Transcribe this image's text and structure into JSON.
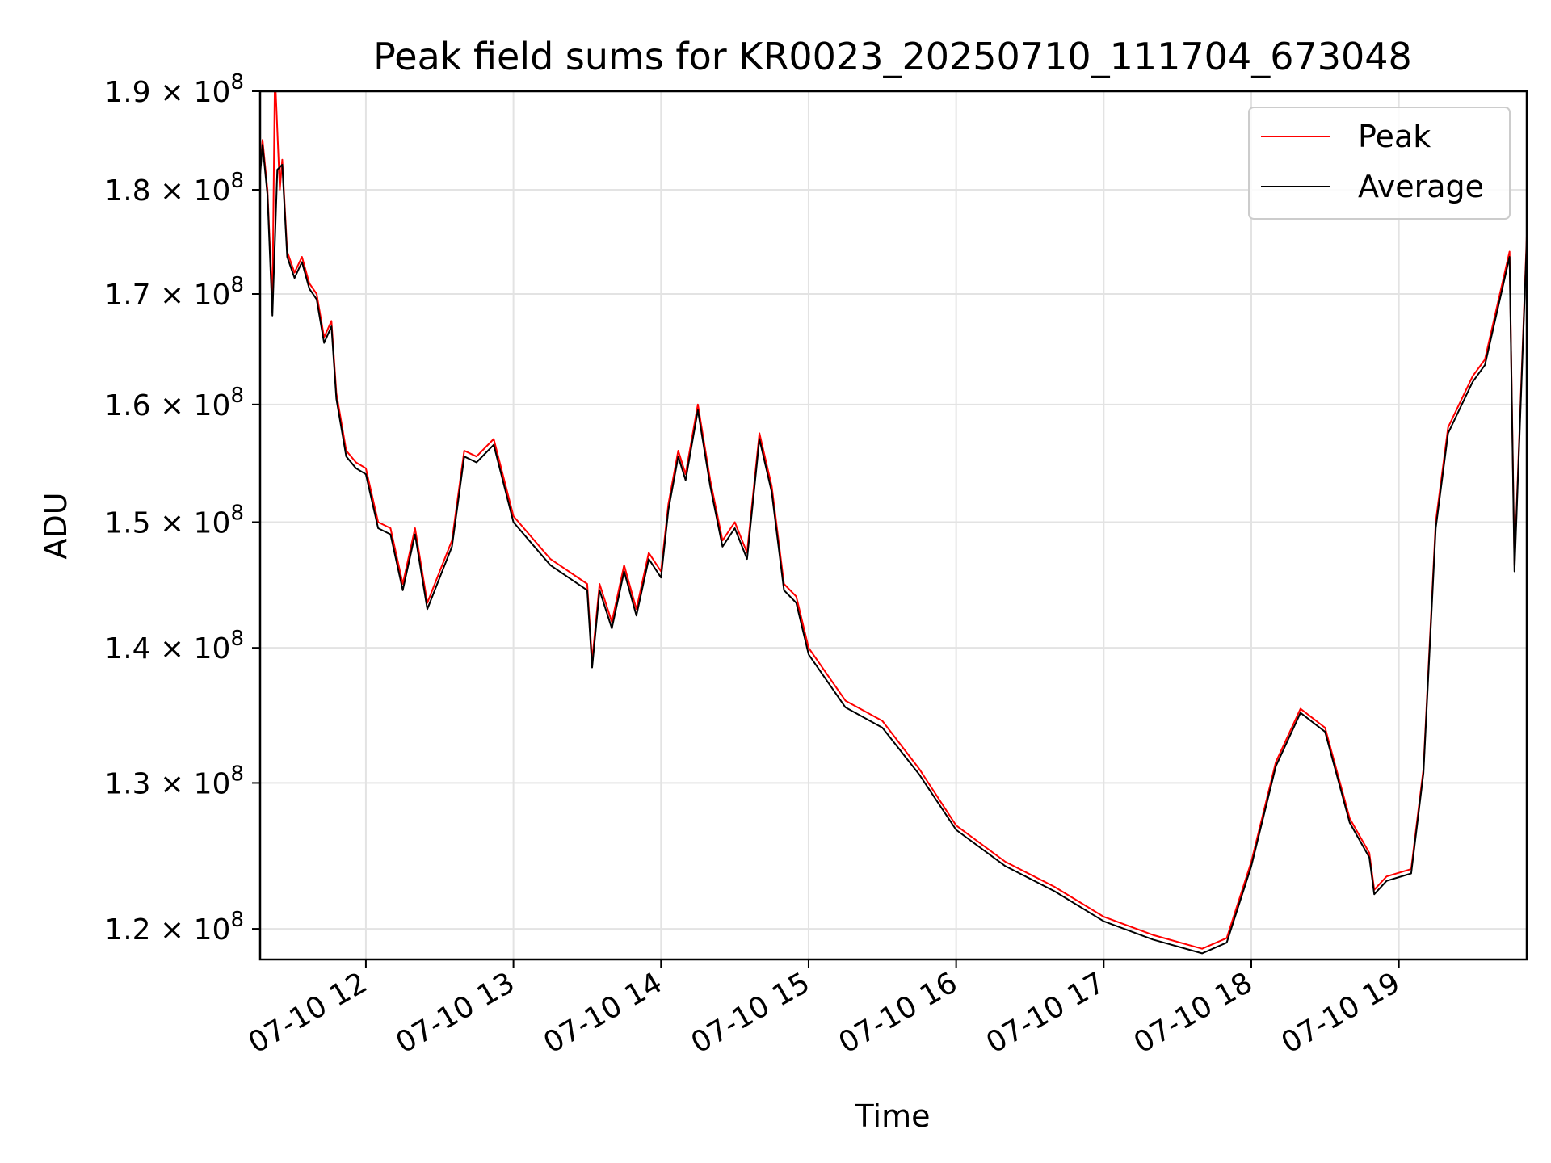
{
  "chart_data": {
    "type": "line",
    "title": "Peak field sums for KR0023_20250710_111704_673048",
    "xlabel": "Time",
    "ylabel": "ADU",
    "yscale": "log",
    "grid": true,
    "legend_position": "top-right",
    "xlim": [
      "2025-07-10 11:17",
      "2025-07-10 19:52"
    ],
    "ylim": [
      118000000,
      190000000
    ],
    "x_ticks": [
      {
        "value": "2025-07-10 12:00",
        "label": "07-10 12"
      },
      {
        "value": "2025-07-10 13:00",
        "label": "07-10 13"
      },
      {
        "value": "2025-07-10 14:00",
        "label": "07-10 14"
      },
      {
        "value": "2025-07-10 15:00",
        "label": "07-10 15"
      },
      {
        "value": "2025-07-10 16:00",
        "label": "07-10 16"
      },
      {
        "value": "2025-07-10 17:00",
        "label": "07-10 17"
      },
      {
        "value": "2025-07-10 18:00",
        "label": "07-10 18"
      },
      {
        "value": "2025-07-10 19:00",
        "label": "07-10 19"
      }
    ],
    "y_ticks": [
      {
        "value": 120000000,
        "mant": "1.2 × 10",
        "exp": "8"
      },
      {
        "value": 130000000,
        "mant": "1.3 × 10",
        "exp": "8"
      },
      {
        "value": 140000000,
        "mant": "1.4 × 10",
        "exp": "8"
      },
      {
        "value": 150000000,
        "mant": "1.5 × 10",
        "exp": "8"
      },
      {
        "value": 160000000,
        "mant": "1.6 × 10",
        "exp": "8"
      },
      {
        "value": 170000000,
        "mant": "1.7 × 10",
        "exp": "8"
      },
      {
        "value": 180000000,
        "mant": "1.8 × 10",
        "exp": "8"
      },
      {
        "value": 190000000,
        "mant": "1.9 × 10",
        "exp": "8"
      }
    ],
    "series": [
      {
        "name": "Peak",
        "color": "#ff0000",
        "points": [
          [
            "2025-07-10 11:17",
            182000000
          ],
          [
            "2025-07-10 11:18",
            185000000
          ],
          [
            "2025-07-10 11:20",
            180000000
          ],
          [
            "2025-07-10 11:22",
            169000000
          ],
          [
            "2025-07-10 11:23",
            192000000
          ],
          [
            "2025-07-10 11:25",
            180000000
          ],
          [
            "2025-07-10 11:26",
            183000000
          ],
          [
            "2025-07-10 11:28",
            174000000
          ],
          [
            "2025-07-10 11:31",
            172000000
          ],
          [
            "2025-07-10 11:34",
            173500000
          ],
          [
            "2025-07-10 11:37",
            171000000
          ],
          [
            "2025-07-10 11:40",
            170000000
          ],
          [
            "2025-07-10 11:43",
            166000000
          ],
          [
            "2025-07-10 11:46",
            167500000
          ],
          [
            "2025-07-10 11:48",
            161000000
          ],
          [
            "2025-07-10 11:52",
            156000000
          ],
          [
            "2025-07-10 11:56",
            155000000
          ],
          [
            "2025-07-10 12:00",
            154500000
          ],
          [
            "2025-07-10 12:05",
            150000000
          ],
          [
            "2025-07-10 12:10",
            149500000
          ],
          [
            "2025-07-10 12:15",
            145000000
          ],
          [
            "2025-07-10 12:20",
            149500000
          ],
          [
            "2025-07-10 12:25",
            143500000
          ],
          [
            "2025-07-10 12:30",
            146000000
          ],
          [
            "2025-07-10 12:35",
            148500000
          ],
          [
            "2025-07-10 12:40",
            156000000
          ],
          [
            "2025-07-10 12:45",
            155500000
          ],
          [
            "2025-07-10 12:52",
            157000000
          ],
          [
            "2025-07-10 13:00",
            150500000
          ],
          [
            "2025-07-10 13:15",
            147000000
          ],
          [
            "2025-07-10 13:30",
            145000000
          ],
          [
            "2025-07-10 13:32",
            139000000
          ],
          [
            "2025-07-10 13:35",
            145000000
          ],
          [
            "2025-07-10 13:40",
            142000000
          ],
          [
            "2025-07-10 13:45",
            146500000
          ],
          [
            "2025-07-10 13:50",
            143000000
          ],
          [
            "2025-07-10 13:55",
            147500000
          ],
          [
            "2025-07-10 14:00",
            146000000
          ],
          [
            "2025-07-10 14:03",
            151500000
          ],
          [
            "2025-07-10 14:07",
            156000000
          ],
          [
            "2025-07-10 14:10",
            154000000
          ],
          [
            "2025-07-10 14:15",
            160000000
          ],
          [
            "2025-07-10 14:20",
            153500000
          ],
          [
            "2025-07-10 14:25",
            148500000
          ],
          [
            "2025-07-10 14:30",
            150000000
          ],
          [
            "2025-07-10 14:35",
            147500000
          ],
          [
            "2025-07-10 14:40",
            157500000
          ],
          [
            "2025-07-10 14:45",
            153000000
          ],
          [
            "2025-07-10 14:50",
            145000000
          ],
          [
            "2025-07-10 14:55",
            144000000
          ],
          [
            "2025-07-10 15:00",
            140000000
          ],
          [
            "2025-07-10 15:15",
            136000000
          ],
          [
            "2025-07-10 15:30",
            134500000
          ],
          [
            "2025-07-10 15:45",
            131000000
          ],
          [
            "2025-07-10 16:00",
            127000000
          ],
          [
            "2025-07-10 16:20",
            124500000
          ],
          [
            "2025-07-10 16:40",
            122800000
          ],
          [
            "2025-07-10 17:00",
            120800000
          ],
          [
            "2025-07-10 17:20",
            119600000
          ],
          [
            "2025-07-10 17:40",
            118700000
          ],
          [
            "2025-07-10 17:50",
            119400000
          ],
          [
            "2025-07-10 18:00",
            124500000
          ],
          [
            "2025-07-10 18:10",
            131500000
          ],
          [
            "2025-07-10 18:20",
            135400000
          ],
          [
            "2025-07-10 18:30",
            134000000
          ],
          [
            "2025-07-10 18:40",
            127500000
          ],
          [
            "2025-07-10 18:48",
            125100000
          ],
          [
            "2025-07-10 18:50",
            122600000
          ],
          [
            "2025-07-10 18:55",
            123500000
          ],
          [
            "2025-07-10 19:05",
            124000000
          ],
          [
            "2025-07-10 19:10",
            131000000
          ],
          [
            "2025-07-10 19:15",
            150000000
          ],
          [
            "2025-07-10 19:20",
            158000000
          ],
          [
            "2025-07-10 19:30",
            162500000
          ],
          [
            "2025-07-10 19:35",
            164000000
          ],
          [
            "2025-07-10 19:45",
            174000000
          ],
          [
            "2025-07-10 19:47",
            146500000
          ],
          [
            "2025-07-10 19:52",
            175500000
          ]
        ]
      },
      {
        "name": "Average",
        "color": "#000000",
        "points": [
          [
            "2025-07-10 11:17",
            181500000
          ],
          [
            "2025-07-10 11:18",
            184500000
          ],
          [
            "2025-07-10 11:20",
            179500000
          ],
          [
            "2025-07-10 11:22",
            168000000
          ],
          [
            "2025-07-10 11:24",
            182000000
          ],
          [
            "2025-07-10 11:26",
            182500000
          ],
          [
            "2025-07-10 11:28",
            173500000
          ],
          [
            "2025-07-10 11:31",
            171500000
          ],
          [
            "2025-07-10 11:34",
            173000000
          ],
          [
            "2025-07-10 11:37",
            170500000
          ],
          [
            "2025-07-10 11:40",
            169500000
          ],
          [
            "2025-07-10 11:43",
            165500000
          ],
          [
            "2025-07-10 11:46",
            167000000
          ],
          [
            "2025-07-10 11:48",
            160500000
          ],
          [
            "2025-07-10 11:52",
            155500000
          ],
          [
            "2025-07-10 11:56",
            154500000
          ],
          [
            "2025-07-10 12:00",
            154000000
          ],
          [
            "2025-07-10 12:05",
            149500000
          ],
          [
            "2025-07-10 12:10",
            149000000
          ],
          [
            "2025-07-10 12:15",
            144500000
          ],
          [
            "2025-07-10 12:20",
            149000000
          ],
          [
            "2025-07-10 12:25",
            143000000
          ],
          [
            "2025-07-10 12:30",
            145500000
          ],
          [
            "2025-07-10 12:35",
            148000000
          ],
          [
            "2025-07-10 12:40",
            155500000
          ],
          [
            "2025-07-10 12:45",
            155000000
          ],
          [
            "2025-07-10 12:52",
            156500000
          ],
          [
            "2025-07-10 13:00",
            150000000
          ],
          [
            "2025-07-10 13:15",
            146500000
          ],
          [
            "2025-07-10 13:30",
            144500000
          ],
          [
            "2025-07-10 13:32",
            138500000
          ],
          [
            "2025-07-10 13:35",
            144500000
          ],
          [
            "2025-07-10 13:40",
            141500000
          ],
          [
            "2025-07-10 13:45",
            146000000
          ],
          [
            "2025-07-10 13:50",
            142500000
          ],
          [
            "2025-07-10 13:55",
            147000000
          ],
          [
            "2025-07-10 14:00",
            145500000
          ],
          [
            "2025-07-10 14:03",
            151000000
          ],
          [
            "2025-07-10 14:07",
            155500000
          ],
          [
            "2025-07-10 14:10",
            153500000
          ],
          [
            "2025-07-10 14:15",
            159500000
          ],
          [
            "2025-07-10 14:20",
            153000000
          ],
          [
            "2025-07-10 14:25",
            148000000
          ],
          [
            "2025-07-10 14:30",
            149500000
          ],
          [
            "2025-07-10 14:35",
            147000000
          ],
          [
            "2025-07-10 14:40",
            157000000
          ],
          [
            "2025-07-10 14:45",
            152500000
          ],
          [
            "2025-07-10 14:50",
            144500000
          ],
          [
            "2025-07-10 14:55",
            143500000
          ],
          [
            "2025-07-10 15:00",
            139500000
          ],
          [
            "2025-07-10 15:15",
            135500000
          ],
          [
            "2025-07-10 15:30",
            134000000
          ],
          [
            "2025-07-10 15:45",
            130600000
          ],
          [
            "2025-07-10 16:00",
            126700000
          ],
          [
            "2025-07-10 16:20",
            124200000
          ],
          [
            "2025-07-10 16:40",
            122500000
          ],
          [
            "2025-07-10 17:00",
            120500000
          ],
          [
            "2025-07-10 17:20",
            119300000
          ],
          [
            "2025-07-10 17:40",
            118400000
          ],
          [
            "2025-07-10 17:50",
            119100000
          ],
          [
            "2025-07-10 18:00",
            124200000
          ],
          [
            "2025-07-10 18:10",
            131200000
          ],
          [
            "2025-07-10 18:20",
            135100000
          ],
          [
            "2025-07-10 18:30",
            133700000
          ],
          [
            "2025-07-10 18:40",
            127200000
          ],
          [
            "2025-07-10 18:48",
            124800000
          ],
          [
            "2025-07-10 18:50",
            122300000
          ],
          [
            "2025-07-10 18:55",
            123200000
          ],
          [
            "2025-07-10 19:05",
            123700000
          ],
          [
            "2025-07-10 19:10",
            130700000
          ],
          [
            "2025-07-10 19:15",
            149500000
          ],
          [
            "2025-07-10 19:20",
            157500000
          ],
          [
            "2025-07-10 19:30",
            162000000
          ],
          [
            "2025-07-10 19:35",
            163500000
          ],
          [
            "2025-07-10 19:45",
            173500000
          ],
          [
            "2025-07-10 19:47",
            146000000
          ],
          [
            "2025-07-10 19:52",
            175000000
          ]
        ]
      }
    ]
  }
}
